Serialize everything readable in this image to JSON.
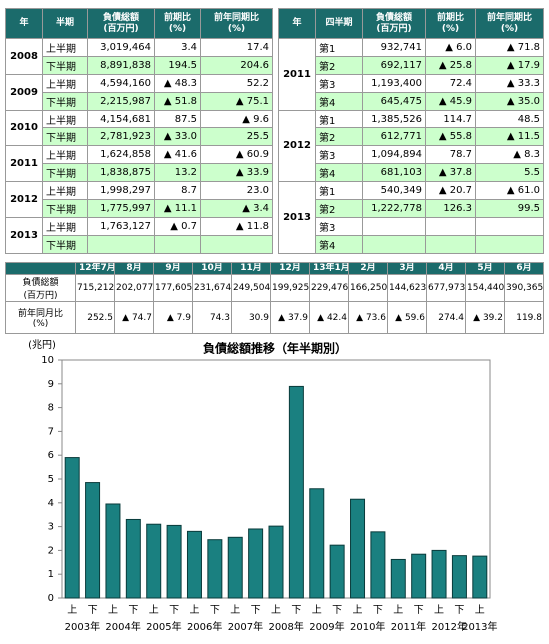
{
  "left_table": {
    "headers": [
      [
        "年"
      ],
      [
        "半期"
      ],
      [
        "負債総額",
        "(百万円)"
      ],
      [
        "前期比",
        "(%)"
      ],
      [
        "前年同期比",
        "(%)"
      ]
    ],
    "groups": [
      {
        "year": "2008",
        "rows": [
          [
            "上半期",
            "3,019,464",
            "3.4",
            "17.4"
          ],
          [
            "下半期",
            "8,891,838",
            "194.5",
            "204.6"
          ]
        ]
      },
      {
        "year": "2009",
        "rows": [
          [
            "上半期",
            "4,594,160",
            "▲ 48.3",
            "52.2"
          ],
          [
            "下半期",
            "2,215,987",
            "▲ 51.8",
            "▲ 75.1"
          ]
        ]
      },
      {
        "year": "2010",
        "rows": [
          [
            "上半期",
            "4,154,681",
            "87.5",
            "▲ 9.6"
          ],
          [
            "下半期",
            "2,781,923",
            "▲ 33.0",
            "25.5"
          ]
        ]
      },
      {
        "year": "2011",
        "rows": [
          [
            "上半期",
            "1,624,858",
            "▲ 41.6",
            "▲ 60.9"
          ],
          [
            "下半期",
            "1,838,875",
            "13.2",
            "▲ 33.9"
          ]
        ]
      },
      {
        "year": "2012",
        "rows": [
          [
            "上半期",
            "1,998,297",
            "8.7",
            "23.0"
          ],
          [
            "下半期",
            "1,775,997",
            "▲ 11.1",
            "▲ 3.4"
          ]
        ]
      },
      {
        "year": "2013",
        "rows": [
          [
            "上半期",
            "1,763,127",
            "▲ 0.7",
            "▲ 11.8"
          ],
          [
            "下半期"
          ]
        ]
      }
    ]
  },
  "right_table": {
    "headers": [
      [
        "年"
      ],
      [
        "四半期"
      ],
      [
        "負債総額",
        "(百万円)"
      ],
      [
        "前期比",
        "(%)"
      ],
      [
        "前年同期比",
        "(%)"
      ]
    ],
    "groups": [
      {
        "year": "2011",
        "rows": [
          [
            "第1",
            "932,741",
            "▲ 6.0",
            "▲ 71.8"
          ],
          [
            "第2",
            "692,117",
            "▲ 25.8",
            "▲ 17.9"
          ],
          [
            "第3",
            "1,193,400",
            "72.4",
            "▲ 33.3"
          ],
          [
            "第4",
            "645,475",
            "▲ 45.9",
            "▲ 35.0"
          ]
        ]
      },
      {
        "year": "2012",
        "rows": [
          [
            "第1",
            "1,385,526",
            "114.7",
            "48.5"
          ],
          [
            "第2",
            "612,771",
            "▲ 55.8",
            "▲ 11.5"
          ],
          [
            "第3",
            "1,094,894",
            "78.7",
            "▲ 8.3"
          ],
          [
            "第4",
            "681,103",
            "▲ 37.8",
            "5.5"
          ]
        ]
      },
      {
        "year": "2013",
        "rows": [
          [
            "第1",
            "540,349",
            "▲ 20.7",
            "▲ 61.0"
          ],
          [
            "第2",
            "1,222,778",
            "126.3",
            "99.5"
          ],
          [
            "第3"
          ],
          [
            "第4"
          ]
        ]
      }
    ]
  },
  "monthly_table": {
    "columns": [
      "12年7月",
      "8月",
      "9月",
      "10月",
      "11月",
      "12月",
      "13年1月",
      "2月",
      "3月",
      "4月",
      "5月",
      "6月"
    ],
    "rows": [
      {
        "label": [
          "負債総額",
          "(百万円)"
        ],
        "values": [
          "715,212",
          "202,077",
          "177,605",
          "231,674",
          "249,504",
          "199,925",
          "229,476",
          "166,250",
          "144,623",
          "677,973",
          "154,440",
          "390,365"
        ]
      },
      {
        "label": [
          "前年同月比",
          "(%)"
        ],
        "values": [
          "252.5",
          "▲ 74.7",
          "▲ 7.9",
          "74.3",
          "30.9",
          "▲ 37.9",
          "▲ 42.4",
          "▲ 73.6",
          "▲ 59.6",
          "274.4",
          "▲ 39.2",
          "119.8"
        ]
      }
    ]
  },
  "chart_data": {
    "type": "bar",
    "title": "負債総額推移（年半期別）",
    "y_label": "(兆円)",
    "categories": [
      "上",
      "下",
      "上",
      "下",
      "上",
      "下",
      "上",
      "下",
      "上",
      "下",
      "上",
      "下",
      "上",
      "下",
      "上",
      "下",
      "上",
      "下",
      "上",
      "下",
      "上"
    ],
    "year_labels": [
      "2003年",
      "2004年",
      "2005年",
      "2006年",
      "2007年",
      "2008年",
      "2009年",
      "2010年",
      "2011年",
      "2012年",
      "2013年"
    ],
    "values": [
      5.9,
      4.85,
      3.95,
      3.3,
      3.1,
      3.05,
      2.8,
      2.45,
      2.55,
      2.9,
      3.02,
      8.89,
      4.59,
      2.22,
      4.15,
      2.78,
      1.62,
      1.84,
      2.0,
      1.78,
      1.76
    ],
    "color": "#1a8080",
    "ylim": [
      0,
      10
    ],
    "yticks": [
      0,
      1,
      2,
      3,
      4,
      5,
      6,
      7,
      8,
      9,
      10
    ],
    "grid": false
  }
}
